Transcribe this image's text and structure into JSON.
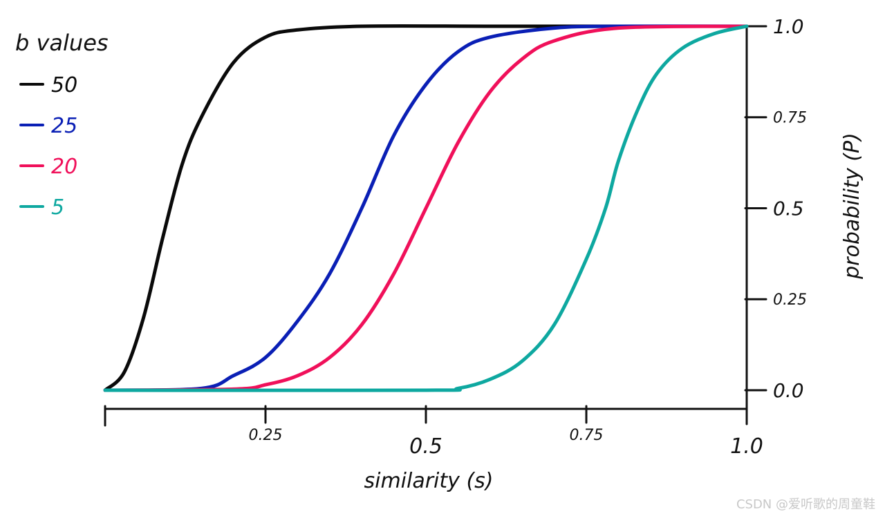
{
  "chart_data": {
    "type": "line",
    "xlabel": "similarity (s)",
    "ylabel": "probability (P)",
    "xlim": [
      0,
      1
    ],
    "ylim": [
      0,
      1
    ],
    "x_ticks": [
      {
        "value": 0.25,
        "label": "0.25"
      },
      {
        "value": 0.5,
        "label": "0.5"
      },
      {
        "value": 0.75,
        "label": "0.75"
      },
      {
        "value": 1.0,
        "label": "1.0"
      }
    ],
    "y_ticks": [
      {
        "value": 0.0,
        "label": "0.0"
      },
      {
        "value": 0.25,
        "label": "0.25"
      },
      {
        "value": 0.5,
        "label": "0.5"
      },
      {
        "value": 0.75,
        "label": "0.75"
      },
      {
        "value": 1.0,
        "label": "1.0"
      }
    ],
    "y_axis_side": "right",
    "grid": false,
    "legend": {
      "title": "b values",
      "placement": "top-left",
      "entries": [
        "50",
        "25",
        "20",
        "5"
      ]
    },
    "series": [
      {
        "name": "50",
        "color": "#0a0a0a",
        "x": [
          0,
          0.03,
          0.06,
          0.09,
          0.12,
          0.15,
          0.2,
          0.25,
          0.3,
          0.4,
          0.6,
          0.8,
          1.0
        ],
        "y": [
          0,
          0.05,
          0.2,
          0.42,
          0.62,
          0.75,
          0.9,
          0.97,
          0.99,
          1.0,
          1.0,
          1.0,
          1.0
        ]
      },
      {
        "name": "25",
        "color": "#0a1fb5",
        "x": [
          0,
          0.15,
          0.2,
          0.25,
          0.3,
          0.35,
          0.4,
          0.45,
          0.5,
          0.55,
          0.6,
          0.7,
          0.8,
          1.0
        ],
        "y": [
          0,
          0.005,
          0.04,
          0.09,
          0.19,
          0.32,
          0.5,
          0.7,
          0.84,
          0.93,
          0.97,
          0.995,
          1.0,
          1.0
        ]
      },
      {
        "name": "20",
        "color": "#f0105a",
        "x": [
          0,
          0.2,
          0.25,
          0.3,
          0.35,
          0.4,
          0.45,
          0.5,
          0.55,
          0.6,
          0.65,
          0.7,
          0.8,
          1.0
        ],
        "y": [
          0,
          0.003,
          0.015,
          0.04,
          0.09,
          0.18,
          0.32,
          0.5,
          0.68,
          0.82,
          0.91,
          0.96,
          0.995,
          1.0
        ]
      },
      {
        "name": "5",
        "color": "#0ea8a0",
        "x": [
          0,
          0.5,
          0.55,
          0.6,
          0.65,
          0.7,
          0.75,
          0.78,
          0.8,
          0.83,
          0.86,
          0.9,
          0.95,
          1.0
        ],
        "y": [
          0,
          0.0,
          0.005,
          0.03,
          0.08,
          0.18,
          0.36,
          0.5,
          0.63,
          0.77,
          0.87,
          0.94,
          0.98,
          1.0
        ]
      }
    ]
  },
  "watermark": "CSDN @爱听歌的周童鞋"
}
